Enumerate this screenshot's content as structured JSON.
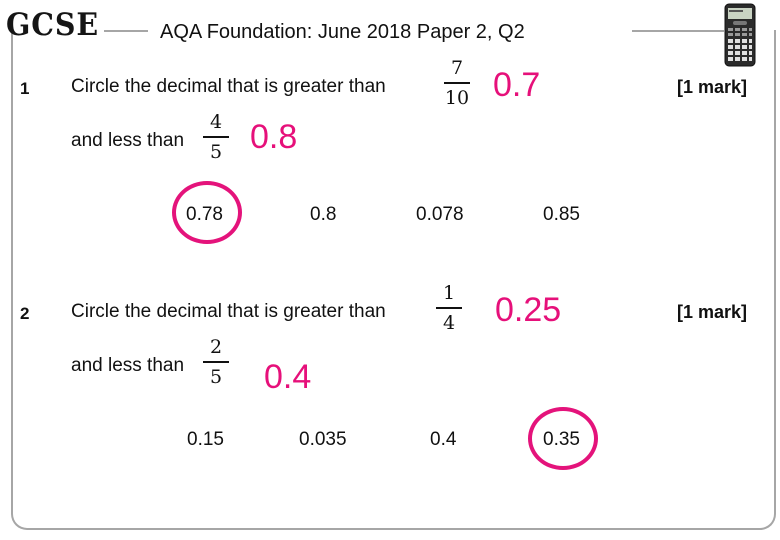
{
  "header": {
    "logo": "GCSE",
    "title": "AQA Foundation: June 2018 Paper 2, Q2"
  },
  "colors": {
    "answer": "#e6107a",
    "frame": "#a6a6a6"
  },
  "questions": [
    {
      "number": "1",
      "text1": "Circle the decimal that is greater than",
      "frac1": {
        "num": "7",
        "den": "10"
      },
      "answer1": "0.7",
      "text2": "and less than",
      "frac2": {
        "num": "4",
        "den": "5"
      },
      "answer2": "0.8",
      "marks": "[1 mark]",
      "options": [
        "0.78",
        "0.8",
        "0.078",
        "0.85"
      ],
      "circled_option": "0.78"
    },
    {
      "number": "2",
      "text1": "Circle the decimal that is greater than",
      "frac1": {
        "num": "1",
        "den": "4"
      },
      "answer1": "0.25",
      "text2": "and less than",
      "frac2": {
        "num": "2",
        "den": "5"
      },
      "answer2": "0.4",
      "marks": "[1 mark]",
      "options": [
        "0.15",
        "0.035",
        "0.4",
        "0.35"
      ],
      "circled_option": "0.35"
    }
  ]
}
